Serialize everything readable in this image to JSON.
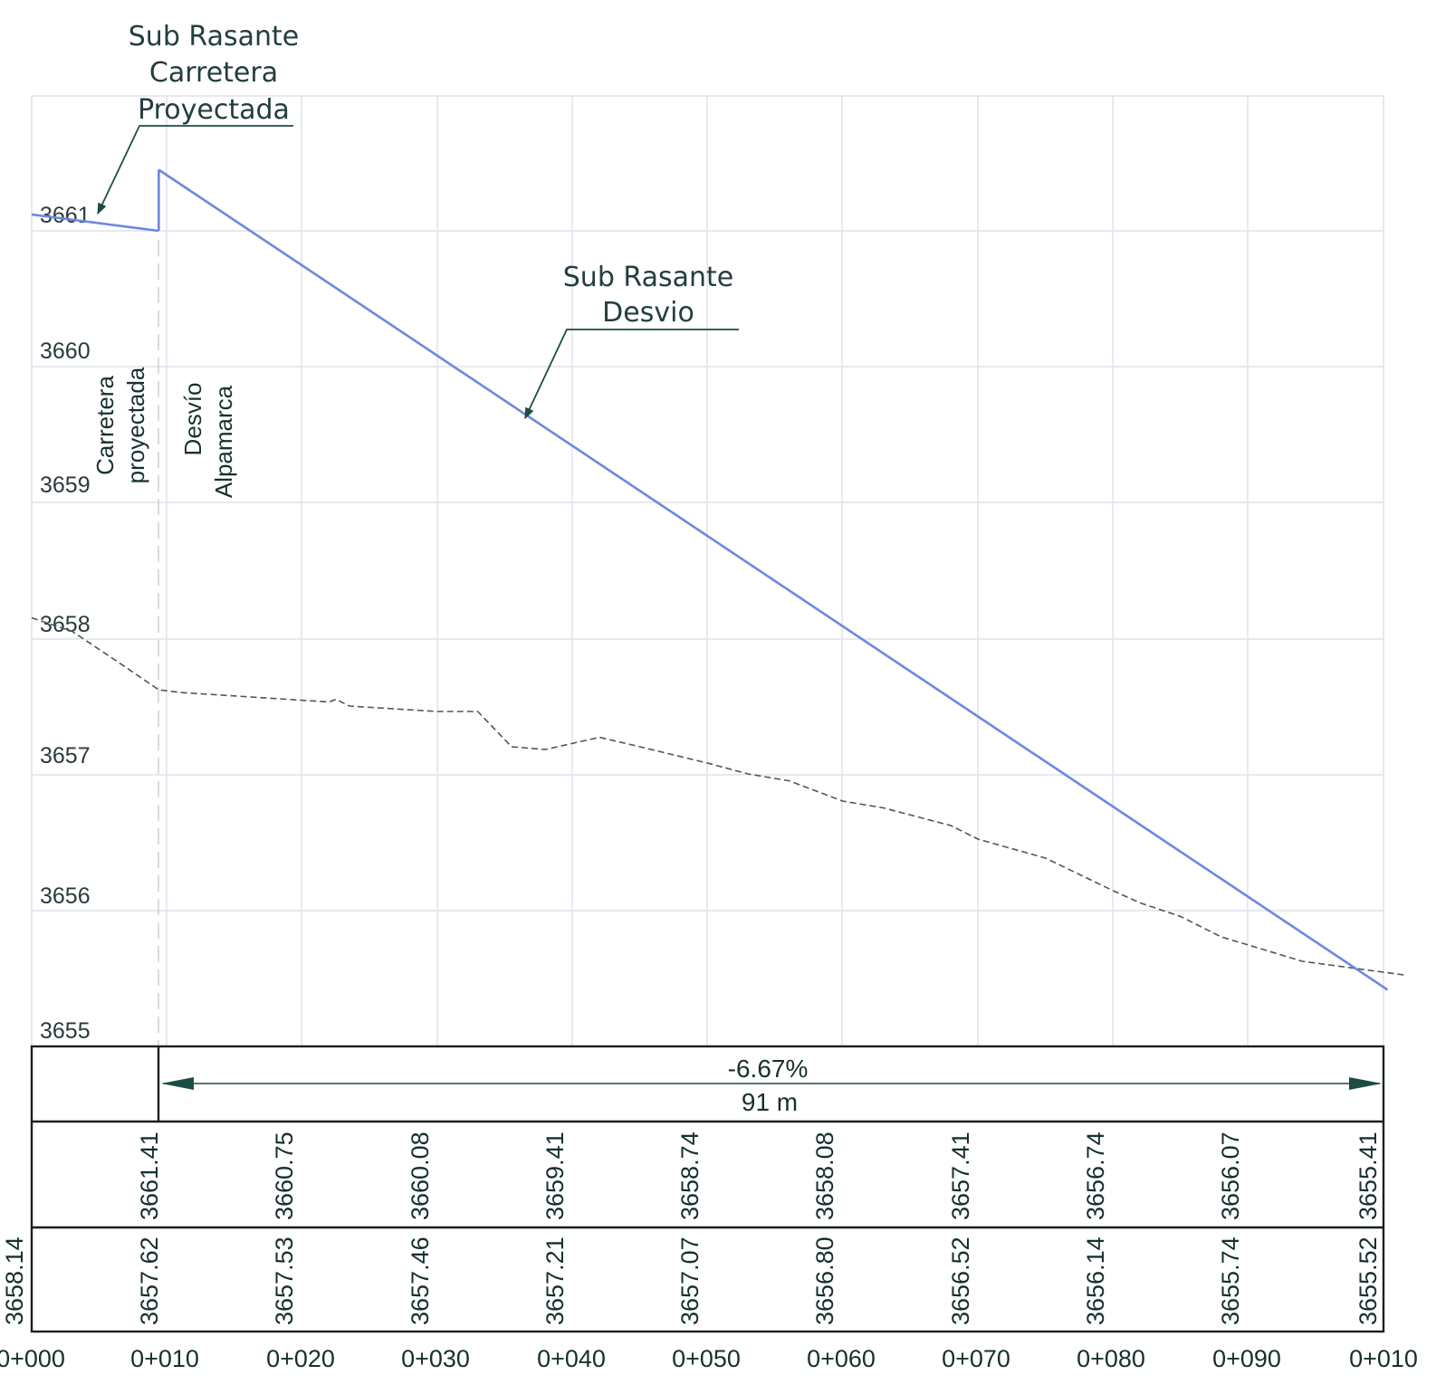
{
  "callouts": {
    "road": [
      "Sub Rasante",
      "Carretera",
      "Proyectada"
    ],
    "detour": [
      "Sub Rasante",
      "Desvio"
    ]
  },
  "vertical_labels": {
    "carretera": [
      "Carretera",
      "proyectada"
    ],
    "desvio": [
      "Desvío",
      "Alpamarca"
    ]
  },
  "elevation_labels": [
    "3661",
    "3660",
    "3659",
    "3658",
    "3657",
    "3656",
    "3655"
  ],
  "slope_band": {
    "grade": "-6.67%",
    "length": "91 m"
  },
  "table": {
    "rasante_values": [
      "3661.41",
      "3660.75",
      "3660.08",
      "3659.41",
      "3658.74",
      "3658.08",
      "3657.41",
      "3656.74",
      "3656.07",
      "3655.41"
    ],
    "terreno_values": [
      "3658.14",
      "3657.62",
      "3657.53",
      "3657.46",
      "3657.21",
      "3657.07",
      "3656.80",
      "3656.52",
      "3656.14",
      "3655.74",
      "3655.52"
    ]
  },
  "chainages": [
    "0+000",
    "0+010",
    "0+020",
    "0+030",
    "0+040",
    "0+050",
    "0+060",
    "0+070",
    "0+080",
    "0+090",
    "0+010"
  ],
  "colors": {
    "grade_line": "#6f86e0",
    "ground_line": "#555555",
    "frame": "#1a1f1f",
    "callout_arrow": "#1d4d42"
  },
  "profile": {
    "road_grade": [
      [
        0,
        3661.12
      ],
      [
        9.4,
        3661.0
      ]
    ],
    "detour_grade": [
      [
        9.4,
        3661.45
      ],
      [
        100.3,
        3655.41
      ]
    ],
    "ground": [
      [
        0,
        3658.15
      ],
      [
        3,
        3658.05
      ],
      [
        6,
        3657.85
      ],
      [
        9.4,
        3657.62
      ],
      [
        11,
        3657.6
      ],
      [
        22,
        3657.53
      ],
      [
        22.5,
        3657.55
      ],
      [
        23.5,
        3657.5
      ],
      [
        30,
        3657.46
      ],
      [
        33,
        3657.46
      ],
      [
        35.5,
        3657.2
      ],
      [
        38,
        3657.18
      ],
      [
        42,
        3657.27
      ],
      [
        45,
        3657.2
      ],
      [
        50,
        3657.08
      ],
      [
        53,
        3657.0
      ],
      [
        56,
        3656.95
      ],
      [
        60,
        3656.8
      ],
      [
        63,
        3656.75
      ],
      [
        68,
        3656.62
      ],
      [
        70,
        3656.52
      ],
      [
        75,
        3656.38
      ],
      [
        80,
        3656.14
      ],
      [
        82,
        3656.05
      ],
      [
        85,
        3655.95
      ],
      [
        88,
        3655.8
      ],
      [
        90,
        3655.74
      ],
      [
        94,
        3655.62
      ],
      [
        97,
        3655.58
      ],
      [
        101.5,
        3655.52
      ]
    ]
  }
}
